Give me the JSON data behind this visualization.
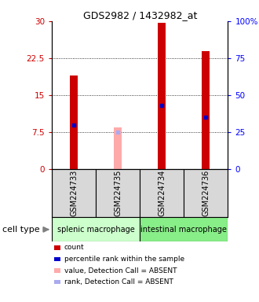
{
  "title": "GDS2982 / 1432982_at",
  "samples": [
    "GSM224733",
    "GSM224735",
    "GSM224734",
    "GSM224736"
  ],
  "bar_values": [
    19.0,
    null,
    29.7,
    24.0
  ],
  "absent_values": [
    null,
    8.5,
    null,
    null
  ],
  "percentile_ranks": [
    30,
    null,
    43,
    35
  ],
  "absent_ranks": [
    null,
    25,
    null,
    null
  ],
  "bar_color": "#cc0000",
  "absent_bar_color": "#ffaaaa",
  "rank_color": "#0000cc",
  "absent_rank_color": "#aaaaee",
  "ylim_left": [
    0,
    30
  ],
  "ylim_right": [
    0,
    100
  ],
  "yticks_left": [
    0,
    7.5,
    15,
    22.5,
    30
  ],
  "yticks_right": [
    0,
    25,
    50,
    75,
    100
  ],
  "ytick_labels_left": [
    "0",
    "7.5",
    "15",
    "22.5",
    "30"
  ],
  "ytick_labels_right": [
    "0",
    "25",
    "50",
    "75",
    "100%"
  ],
  "cell_groups": [
    {
      "label": "splenic macrophage",
      "samples": [
        0,
        1
      ],
      "color": "#ccffcc"
    },
    {
      "label": "intestinal macrophage",
      "samples": [
        2,
        3
      ],
      "color": "#88ee88"
    }
  ],
  "bar_width": 0.18,
  "plot_bg": "#ffffff",
  "sample_box_bg": "#d8d8d8",
  "legend_items": [
    {
      "color": "#cc0000",
      "label": "count"
    },
    {
      "color": "#0000cc",
      "label": "percentile rank within the sample"
    },
    {
      "color": "#ffaaaa",
      "label": "value, Detection Call = ABSENT"
    },
    {
      "color": "#aaaaee",
      "label": "rank, Detection Call = ABSENT"
    }
  ],
  "grid_color": "black",
  "grid_lw": 0.6
}
